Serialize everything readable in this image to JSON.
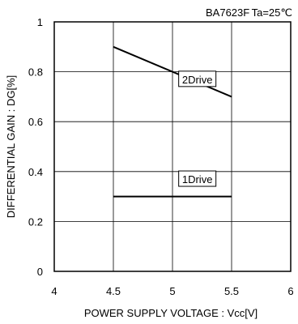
{
  "chart_data": {
    "type": "line",
    "header_left": "BA7623F",
    "header_right": "Ta=25℃",
    "xlabel": "POWER SUPPLY VOLTAGE : Vcc[V]",
    "ylabel": "DIFFERENTIAL GAIN : DG[%]",
    "xlim": [
      4,
      6
    ],
    "ylim": [
      0,
      1
    ],
    "x_ticks": [
      "4",
      "4.5",
      "5",
      "5.5",
      "6"
    ],
    "y_ticks": [
      "0",
      "0.2",
      "0.4",
      "0.6",
      "0.8",
      "1"
    ],
    "grid": true,
    "series": [
      {
        "name": "2Drive",
        "x": [
          4.5,
          5.5
        ],
        "y": [
          0.9,
          0.7
        ],
        "color": "#000000"
      },
      {
        "name": "1Drive",
        "x": [
          4.5,
          5.5
        ],
        "y": [
          0.3,
          0.3
        ],
        "color": "#000000"
      }
    ]
  }
}
